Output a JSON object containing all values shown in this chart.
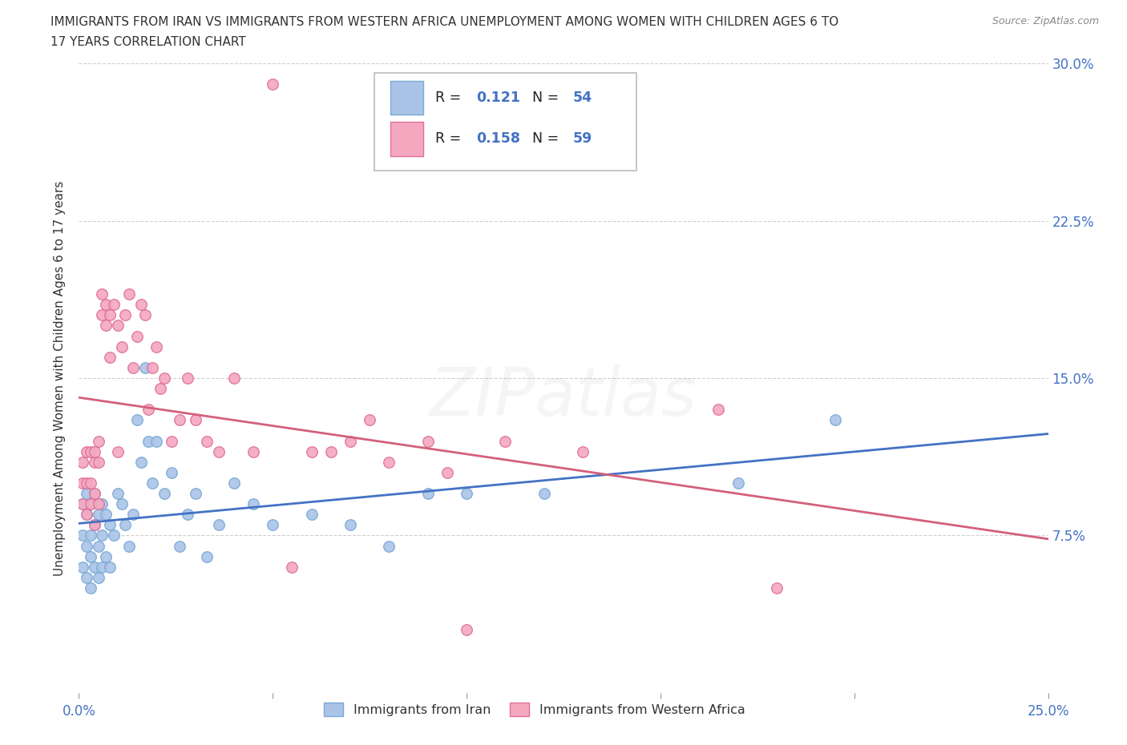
{
  "title_line1": "IMMIGRANTS FROM IRAN VS IMMIGRANTS FROM WESTERN AFRICA UNEMPLOYMENT AMONG WOMEN WITH CHILDREN AGES 6 TO",
  "title_line2": "17 YEARS CORRELATION CHART",
  "source_text": "Source: ZipAtlas.com",
  "ylabel": "Unemployment Among Women with Children Ages 6 to 17 years",
  "xlim": [
    0.0,
    0.25
  ],
  "ylim": [
    0.0,
    0.3
  ],
  "xticks": [
    0.0,
    0.05,
    0.1,
    0.15,
    0.2,
    0.25
  ],
  "yticks": [
    0.0,
    0.075,
    0.15,
    0.225,
    0.3
  ],
  "xticklabels": [
    "0.0%",
    "",
    "",
    "",
    "",
    "25.0%"
  ],
  "yticklabels_right": [
    "",
    "7.5%",
    "15.0%",
    "22.5%",
    "30.0%"
  ],
  "grid_color": "#d0d0d0",
  "background_color": "#ffffff",
  "iran_color": "#aac4e8",
  "iran_edge_color": "#7aaad4",
  "western_africa_color": "#f4a8c0",
  "western_africa_edge_color": "#e0709a",
  "iran_R": 0.121,
  "iran_N": 54,
  "western_africa_R": 0.158,
  "western_africa_N": 59,
  "iran_x": [
    0.001,
    0.001,
    0.001,
    0.002,
    0.002,
    0.002,
    0.002,
    0.003,
    0.003,
    0.003,
    0.003,
    0.004,
    0.004,
    0.004,
    0.005,
    0.005,
    0.005,
    0.006,
    0.006,
    0.006,
    0.007,
    0.007,
    0.008,
    0.008,
    0.009,
    0.01,
    0.011,
    0.012,
    0.013,
    0.014,
    0.015,
    0.016,
    0.017,
    0.018,
    0.019,
    0.02,
    0.022,
    0.024,
    0.026,
    0.028,
    0.03,
    0.033,
    0.036,
    0.04,
    0.045,
    0.05,
    0.06,
    0.07,
    0.08,
    0.09,
    0.1,
    0.12,
    0.17,
    0.195
  ],
  "iran_y": [
    0.09,
    0.075,
    0.06,
    0.095,
    0.085,
    0.07,
    0.055,
    0.09,
    0.075,
    0.065,
    0.05,
    0.095,
    0.08,
    0.06,
    0.085,
    0.07,
    0.055,
    0.09,
    0.075,
    0.06,
    0.085,
    0.065,
    0.08,
    0.06,
    0.075,
    0.095,
    0.09,
    0.08,
    0.07,
    0.085,
    0.13,
    0.11,
    0.155,
    0.12,
    0.1,
    0.12,
    0.095,
    0.105,
    0.07,
    0.085,
    0.095,
    0.065,
    0.08,
    0.1,
    0.09,
    0.08,
    0.085,
    0.08,
    0.07,
    0.095,
    0.095,
    0.095,
    0.1,
    0.13
  ],
  "western_africa_x": [
    0.001,
    0.001,
    0.001,
    0.002,
    0.002,
    0.002,
    0.003,
    0.003,
    0.003,
    0.004,
    0.004,
    0.004,
    0.004,
    0.005,
    0.005,
    0.005,
    0.006,
    0.006,
    0.007,
    0.007,
    0.008,
    0.008,
    0.009,
    0.01,
    0.01,
    0.011,
    0.012,
    0.013,
    0.014,
    0.015,
    0.016,
    0.017,
    0.018,
    0.019,
    0.02,
    0.021,
    0.022,
    0.024,
    0.026,
    0.028,
    0.03,
    0.033,
    0.036,
    0.04,
    0.045,
    0.05,
    0.055,
    0.06,
    0.065,
    0.07,
    0.075,
    0.08,
    0.09,
    0.095,
    0.1,
    0.11,
    0.13,
    0.165,
    0.18
  ],
  "western_africa_y": [
    0.1,
    0.09,
    0.11,
    0.1,
    0.115,
    0.085,
    0.1,
    0.09,
    0.115,
    0.11,
    0.095,
    0.115,
    0.08,
    0.11,
    0.09,
    0.12,
    0.18,
    0.19,
    0.175,
    0.185,
    0.16,
    0.18,
    0.185,
    0.115,
    0.175,
    0.165,
    0.18,
    0.19,
    0.155,
    0.17,
    0.185,
    0.18,
    0.135,
    0.155,
    0.165,
    0.145,
    0.15,
    0.12,
    0.13,
    0.15,
    0.13,
    0.12,
    0.115,
    0.15,
    0.115,
    0.29,
    0.06,
    0.115,
    0.115,
    0.12,
    0.13,
    0.11,
    0.12,
    0.105,
    0.03,
    0.12,
    0.115,
    0.135,
    0.05
  ],
  "iran_line_color": "#4472c4",
  "western_africa_line_color": "#d4607a",
  "marker_size": 95,
  "marker_linewidth": 1.0,
  "line_width": 2.0,
  "watermark_text": "ZIPatlas",
  "watermark_alpha": 0.12,
  "watermark_color": "#b0b0b0",
  "watermark_fontsize": 60
}
